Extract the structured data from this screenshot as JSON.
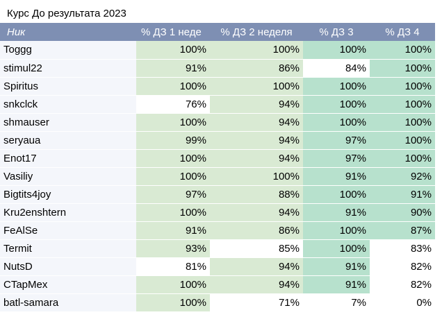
{
  "title": "Курс До результата 2023",
  "headers": [
    "Ник",
    "% ДЗ 1 неде",
    "% ДЗ 2 неделя",
    "% ДЗ 3",
    "% ДЗ 4"
  ],
  "colors": {
    "header": "#7e8fb3",
    "light_green": "#d9ead3",
    "green": "#b7e1cd",
    "white": "#ffffff",
    "nick_bg": "#f4f6fb"
  },
  "rows": [
    {
      "nick": "Toggg",
      "v": [
        "100%",
        "100%",
        "100%",
        "100%"
      ],
      "c": [
        "g1",
        "g1",
        "g2",
        "g2"
      ]
    },
    {
      "nick": "stimul22",
      "v": [
        "91%",
        "86%",
        "84%",
        "100%"
      ],
      "c": [
        "g1",
        "g1",
        "w",
        "g2"
      ]
    },
    {
      "nick": "Spiritus",
      "v": [
        "100%",
        "100%",
        "100%",
        "100%"
      ],
      "c": [
        "g1",
        "g1",
        "g2",
        "g2"
      ]
    },
    {
      "nick": "snkclck",
      "v": [
        "76%",
        "94%",
        "100%",
        "100%"
      ],
      "c": [
        "w",
        "g1",
        "g2",
        "g2"
      ]
    },
    {
      "nick": "shmauser",
      "v": [
        "100%",
        "94%",
        "100%",
        "100%"
      ],
      "c": [
        "g1",
        "g1",
        "g2",
        "g2"
      ]
    },
    {
      "nick": "seryaua",
      "v": [
        "99%",
        "94%",
        "97%",
        "100%"
      ],
      "c": [
        "g1",
        "g1",
        "g2",
        "g2"
      ]
    },
    {
      "nick": "Enot17",
      "v": [
        "100%",
        "94%",
        "97%",
        "100%"
      ],
      "c": [
        "g1",
        "g1",
        "g2",
        "g2"
      ]
    },
    {
      "nick": "Vasiliy",
      "v": [
        "100%",
        "100%",
        "91%",
        "92%"
      ],
      "c": [
        "g1",
        "g1",
        "g2",
        "g2"
      ]
    },
    {
      "nick": "Bigtits4joy",
      "v": [
        "97%",
        "88%",
        "100%",
        "91%"
      ],
      "c": [
        "g1",
        "g1",
        "g2",
        "g2"
      ]
    },
    {
      "nick": "Kru2enshtern",
      "v": [
        "100%",
        "94%",
        "91%",
        "90%"
      ],
      "c": [
        "g1",
        "g1",
        "g2",
        "g2"
      ]
    },
    {
      "nick": "FeAlSe",
      "v": [
        "91%",
        "86%",
        "100%",
        "87%"
      ],
      "c": [
        "g1",
        "g1",
        "g2",
        "g2"
      ]
    },
    {
      "nick": "Termit",
      "v": [
        "93%",
        "85%",
        "100%",
        "83%"
      ],
      "c": [
        "g1",
        "w",
        "g2",
        "w"
      ]
    },
    {
      "nick": "NutsD",
      "v": [
        "81%",
        "94%",
        "91%",
        "82%"
      ],
      "c": [
        "w",
        "g1",
        "g2",
        "w"
      ]
    },
    {
      "nick": "CTapMex",
      "v": [
        "100%",
        "94%",
        "91%",
        "82%"
      ],
      "c": [
        "g1",
        "g1",
        "g2",
        "w"
      ]
    },
    {
      "nick": "batl-samara",
      "v": [
        "100%",
        "71%",
        "7%",
        "0%"
      ],
      "c": [
        "g1",
        "w",
        "w",
        "w"
      ]
    }
  ]
}
